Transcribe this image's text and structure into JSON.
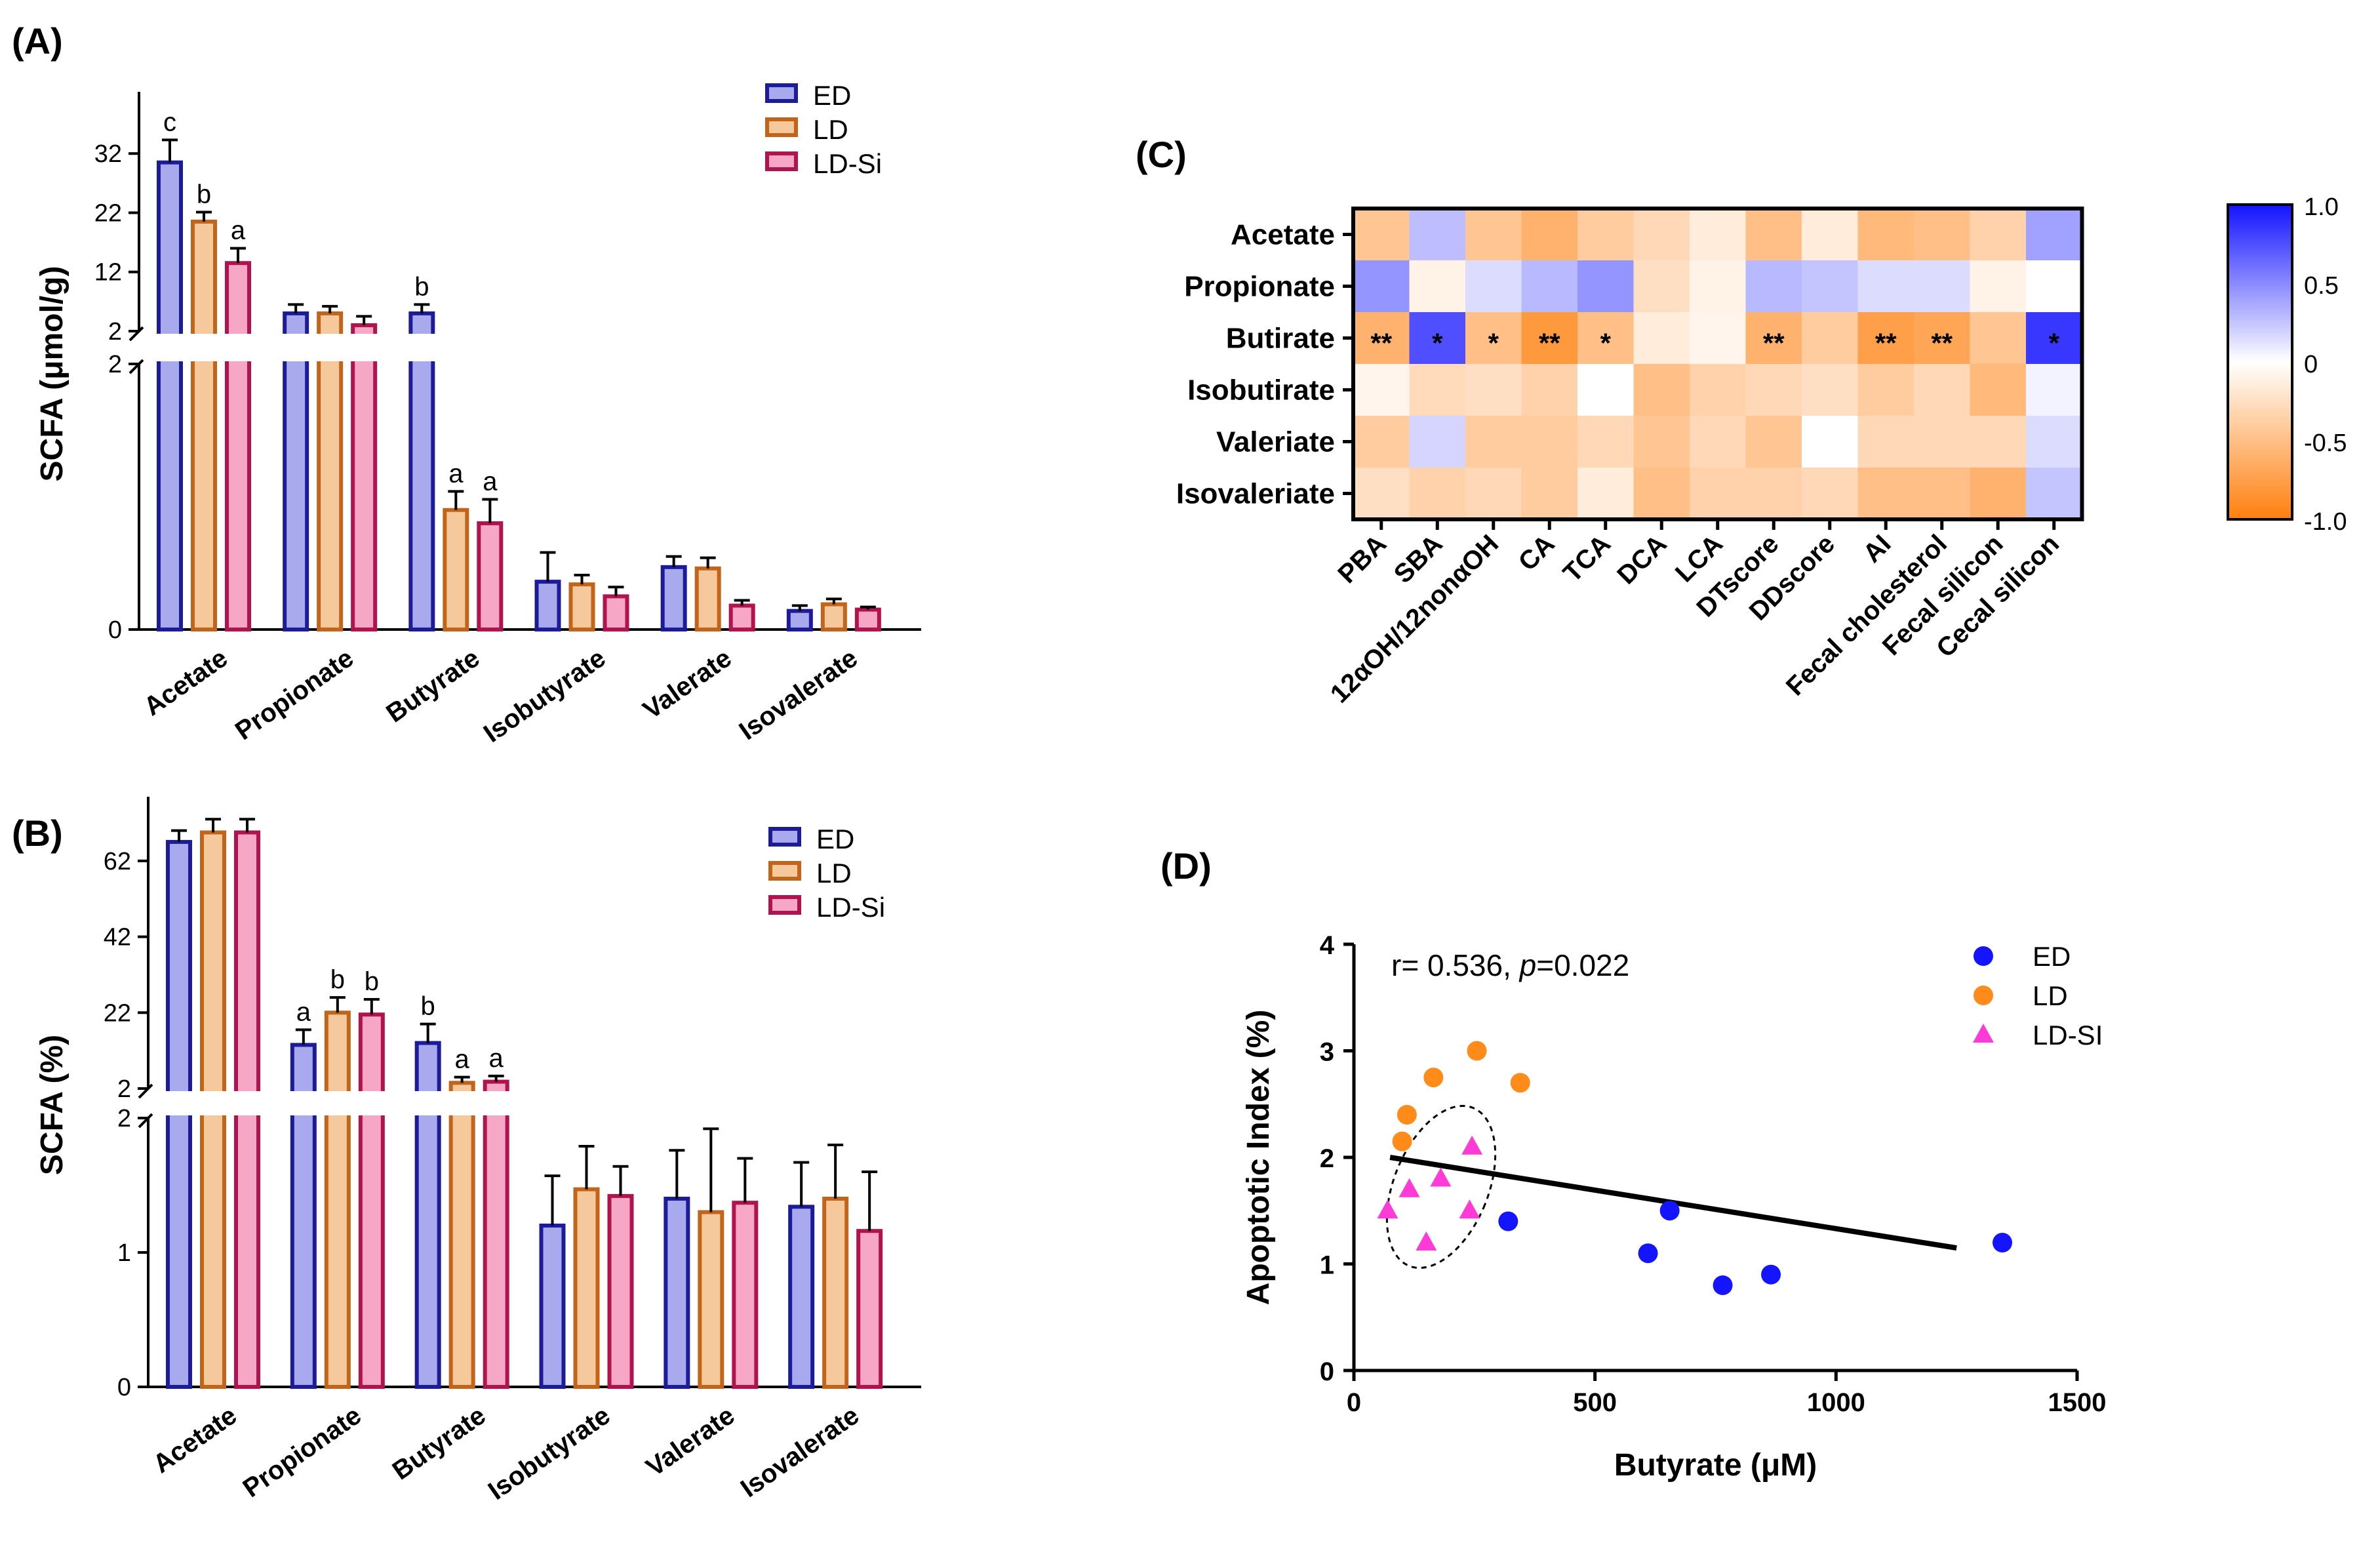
{
  "panels": {
    "A": {
      "label": "(A)",
      "chart_data": {
        "type": "bar",
        "title": "",
        "ylabel": "SCFA (μmol/g)",
        "xlabel": "",
        "axis_break": true,
        "upper_ticks": [
          2,
          12,
          22,
          32
        ],
        "lower_ticks": [
          0,
          2
        ],
        "lower_tick_labels": [
          "0",
          "2"
        ],
        "upper_tick_labels": [
          "2",
          "12",
          "22",
          "32"
        ],
        "categories": [
          "Acetate",
          "Propionate",
          "Butyrate",
          "Isobutyrate",
          "Valerate",
          "Isovalerate"
        ],
        "series": [
          {
            "name": "ED",
            "color": "#1c1c9a",
            "fill": "#a9a9ee",
            "values": [
              30.5,
              5.0,
              5.0,
              0.36,
              0.47,
              0.14
            ],
            "errors": [
              3.8,
              1.5,
              1.5,
              0.22,
              0.08,
              0.04
            ],
            "labels": [
              "c",
              "",
              "b",
              "",
              "",
              ""
            ]
          },
          {
            "name": "LD",
            "color": "#c2651a",
            "fill": "#f5c99b",
            "values": [
              20.5,
              5.0,
              0.9,
              0.34,
              0.46,
              0.19
            ],
            "errors": [
              1.6,
              1.2,
              0.14,
              0.07,
              0.08,
              0.04
            ],
            "labels": [
              "b",
              "",
              "a",
              "",
              "",
              ""
            ]
          },
          {
            "name": "LD-Si",
            "color": "#b0134e",
            "fill": "#f5a7c5",
            "values": [
              13.5,
              3.0,
              0.8,
              0.25,
              0.18,
              0.15
            ],
            "errors": [
              2.5,
              1.5,
              0.18,
              0.07,
              0.04,
              0.02
            ],
            "labels": [
              "a",
              "",
              "a",
              "",
              "",
              ""
            ]
          }
        ]
      }
    },
    "B": {
      "label": "(B)",
      "chart_data": {
        "type": "bar",
        "title": "",
        "ylabel": "SCFA (%)",
        "xlabel": "",
        "axis_break": true,
        "upper_ticks": [
          2,
          22,
          42,
          62
        ],
        "lower_ticks": [
          0,
          1,
          2
        ],
        "lower_tick_labels": [
          "0",
          "1",
          "2"
        ],
        "upper_tick_labels": [
          "2",
          "22",
          "42",
          "62"
        ],
        "categories": [
          "Acetate",
          "Propionate",
          "Butyrate",
          "Isobutyrate",
          "Valerate",
          "Isovalerate"
        ],
        "series": [
          {
            "name": "ED",
            "color": "#1c1c9a",
            "fill": "#a9a9ee",
            "values": [
              67,
              13.5,
              14,
              1.2,
              1.4,
              1.34
            ],
            "errors": [
              3,
              4,
              5,
              0.37,
              0.36,
              0.33
            ],
            "labels": [
              "",
              "a",
              "b",
              "",
              "",
              ""
            ]
          },
          {
            "name": "LD",
            "color": "#c2651a",
            "fill": "#f5c99b",
            "values": [
              69.5,
              22,
              3.5,
              1.47,
              1.3,
              1.4
            ],
            "errors": [
              3.5,
              4,
              1.5,
              0.32,
              0.62,
              0.4
            ],
            "labels": [
              "",
              "b",
              "a",
              "",
              "",
              ""
            ]
          },
          {
            "name": "LD-Si",
            "color": "#b0134e",
            "fill": "#f5a7c5",
            "values": [
              69.5,
              21.5,
              3.8,
              1.42,
              1.37,
              1.16
            ],
            "errors": [
              3.5,
              4,
              1.5,
              0.22,
              0.33,
              0.44
            ],
            "labels": [
              "",
              "b",
              "a",
              "",
              "",
              ""
            ]
          }
        ]
      }
    },
    "C": {
      "label": "(C)",
      "chart_data": {
        "type": "heatmap",
        "rows": [
          "Acetate",
          "Propionate",
          "Butirate",
          "Isobutirate",
          "Valeriate",
          "Isovaleriate"
        ],
        "columns": [
          "PBA",
          "SBA",
          "12αOH/12nonαOH",
          "CA",
          "TCA",
          "DCA",
          "LCA",
          "DTscore",
          "DDscore",
          "AI",
          "Fecal cholesterol",
          "Fecal silicon",
          "Cecal silicon"
        ],
        "values": [
          [
            -0.45,
            0.28,
            -0.45,
            -0.6,
            -0.4,
            -0.3,
            -0.15,
            -0.5,
            -0.15,
            -0.55,
            -0.5,
            -0.35,
            0.4
          ],
          [
            0.45,
            -0.1,
            0.15,
            0.3,
            0.45,
            -0.25,
            -0.1,
            0.3,
            0.25,
            0.15,
            0.15,
            -0.1,
            0.0
          ],
          [
            -0.6,
            0.75,
            -0.5,
            -0.8,
            -0.5,
            -0.15,
            -0.08,
            -0.6,
            -0.4,
            -0.75,
            -0.7,
            -0.45,
            0.85
          ],
          [
            -0.08,
            -0.28,
            -0.25,
            -0.35,
            0.0,
            -0.5,
            -0.35,
            -0.3,
            -0.25,
            -0.4,
            -0.3,
            -0.55,
            0.05
          ],
          [
            -0.4,
            0.18,
            -0.4,
            -0.4,
            -0.3,
            -0.45,
            -0.3,
            -0.45,
            0.0,
            -0.3,
            -0.3,
            -0.3,
            0.15
          ],
          [
            -0.25,
            -0.35,
            -0.3,
            -0.4,
            -0.15,
            -0.5,
            -0.35,
            -0.35,
            -0.3,
            -0.5,
            -0.5,
            -0.6,
            0.25
          ]
        ],
        "stars": [
          [
            "",
            "",
            "",
            "",
            "",
            "",
            "",
            "",
            "",
            "",
            "",
            "",
            ""
          ],
          [
            "",
            "",
            "",
            "",
            "",
            "",
            "",
            "",
            "",
            "",
            "",
            "",
            ""
          ],
          [
            "**",
            "*",
            "*",
            "**",
            "*",
            "",
            "",
            "**",
            "",
            "**",
            "**",
            "",
            "*"
          ],
          [
            "",
            "",
            "",
            "",
            "",
            "",
            "",
            "",
            "",
            "",
            "",
            "",
            ""
          ],
          [
            "",
            "",
            "",
            "",
            "",
            "",
            "",
            "",
            "",
            "",
            "",
            "",
            ""
          ],
          [
            "",
            "",
            "",
            "",
            "",
            "",
            "",
            "",
            "",
            "",
            "",
            "",
            ""
          ]
        ],
        "colorbar": {
          "min": -1.0,
          "max": 1.0,
          "ticks": [
            "1.0",
            "0.5",
            "0",
            "-0.5",
            "-1.0"
          ],
          "color_neg": "#ff7f0e",
          "color_mid": "#ffffff",
          "color_pos": "#1414ff"
        }
      }
    },
    "D": {
      "label": "(D)",
      "chart_data": {
        "type": "scatter",
        "xlabel": "Butyrate (μM)",
        "ylabel": "Apoptotic Index (%)",
        "xlim": [
          0,
          1500
        ],
        "ylim": [
          0,
          4
        ],
        "xticks": [
          0,
          500,
          1000,
          1500
        ],
        "yticks": [
          0,
          1,
          2,
          3,
          4
        ],
        "annotation_prefix": "r= 0.536, ",
        "annotation_p": "p",
        "annotation_suffix": "=0.022",
        "series": [
          {
            "name": "ED",
            "color": "#1414ff",
            "marker": "circle",
            "x": [
              320,
              610,
              655,
              765,
              865,
              1345
            ],
            "y": [
              1.4,
              1.1,
              1.5,
              0.8,
              0.9,
              1.2
            ]
          },
          {
            "name": "LD",
            "color": "#ff8c1a",
            "marker": "circle",
            "x": [
              100,
              110,
              165,
              255,
              345
            ],
            "y": [
              2.15,
              2.4,
              2.75,
              3.0,
              2.7
            ]
          },
          {
            "name": "LD-SI",
            "color": "#ff3ad6",
            "marker": "triangle",
            "x": [
              70,
              115,
              150,
              180,
              240,
              245
            ],
            "y": [
              1.5,
              1.7,
              1.2,
              1.8,
              1.5,
              2.1
            ]
          }
        ],
        "fit_line": {
          "x": [
            75,
            1250
          ],
          "y": [
            2.0,
            1.15
          ]
        }
      }
    }
  }
}
